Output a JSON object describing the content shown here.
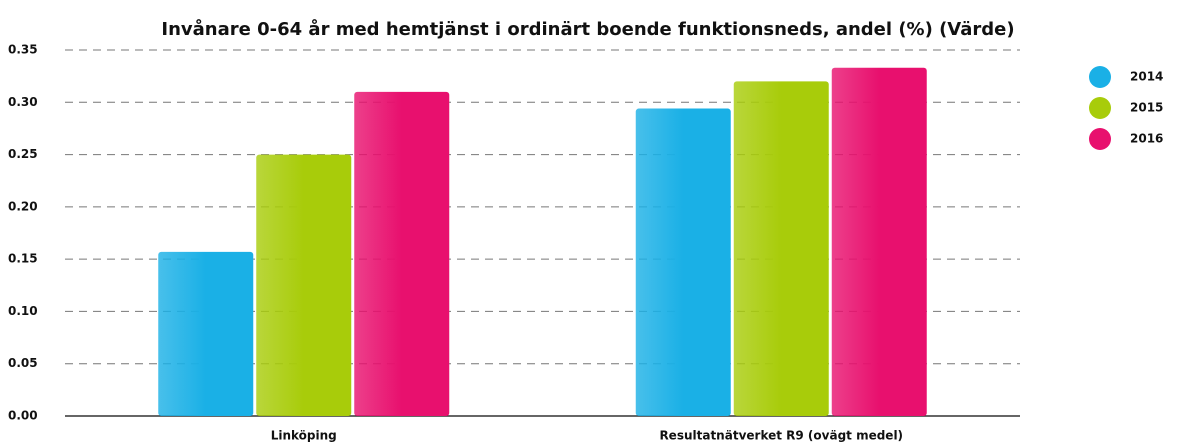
{
  "chart_data": {
    "type": "bar",
    "title": "Invånare 0-64 år med hemtjänst i ordinärt boende funktionsneds, andel (%) (Värde)",
    "categories": [
      "Linköping",
      "Resultatnätverket R9 (ovägt medel)"
    ],
    "series": [
      {
        "name": "2014",
        "color": "#1ab0e6",
        "values": [
          0.157,
          0.294
        ]
      },
      {
        "name": "2015",
        "color": "#a8cc0a",
        "values": [
          0.25,
          0.32
        ]
      },
      {
        "name": "2016",
        "color": "#e8106e",
        "values": [
          0.31,
          0.333
        ]
      }
    ],
    "ylim": [
      0,
      0.35
    ],
    "yticks": [
      {
        "value": 0,
        "label": "0.00"
      },
      {
        "value": 0.05,
        "label": "0.05"
      },
      {
        "value": 0.1,
        "label": "0.10"
      },
      {
        "value": 0.15,
        "label": "0.15"
      },
      {
        "value": 0.2,
        "label": "0.20"
      },
      {
        "value": 0.25,
        "label": "0.25"
      },
      {
        "value": 0.3,
        "label": "0.30"
      },
      {
        "value": 0.35,
        "label": "0.35"
      }
    ],
    "grid": true,
    "legend": "right"
  }
}
